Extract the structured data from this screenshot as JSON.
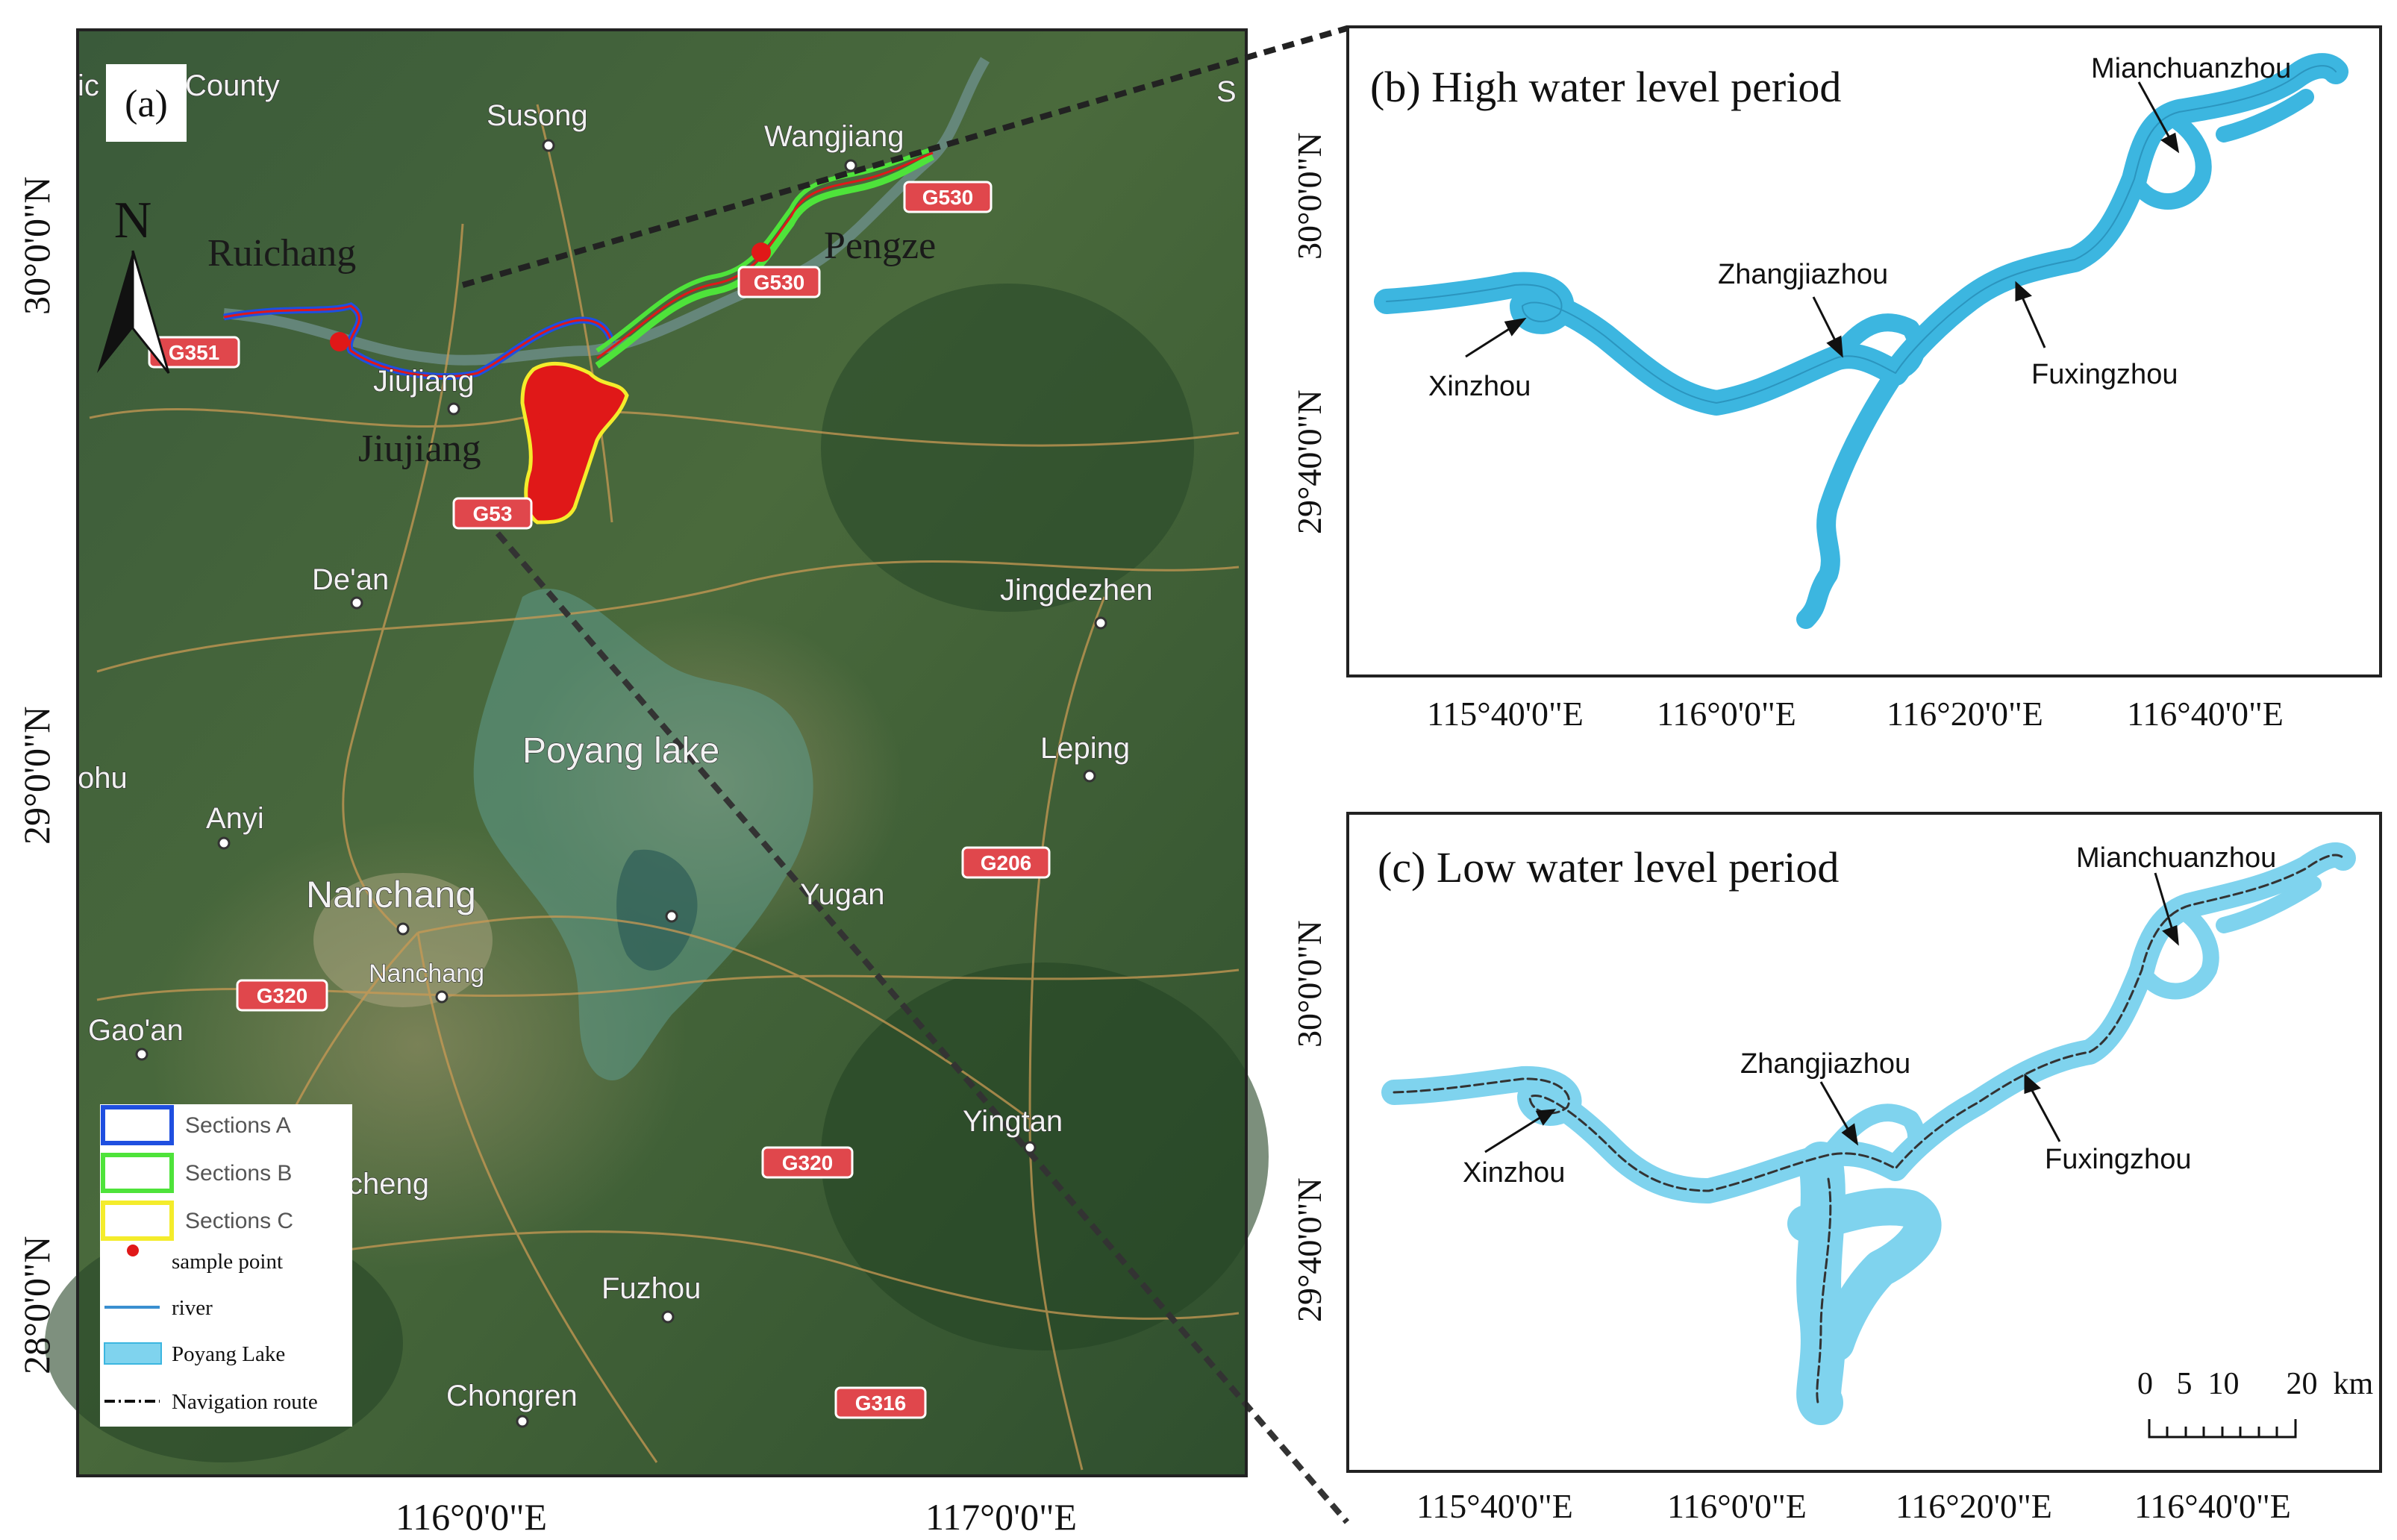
{
  "panel_a": {
    "label": "(a)",
    "north": "N",
    "lat_labels": [
      "30°0'0\"N",
      "29°0'0\"N",
      "28°0'0\"N"
    ],
    "lon_labels": [
      "116°0'0\"E",
      "117°0'0\"E"
    ],
    "places": {
      "county": "County",
      "susong": "Susong",
      "wangjiang": "Wangjiang",
      "ruichang": "Ruichang",
      "pengze": "Pengze",
      "jiujiang_map": "Jiujiang",
      "jiujiang": "Jiujiang",
      "dean": "De'an",
      "jingdezhen": "Jingdezhen",
      "poyang": "Poyang lake",
      "leping": "Leping",
      "anyi": "Anyi",
      "nanchang": "Nanchang",
      "nanchang_small": "Nanchang",
      "yugan": "Yugan",
      "gaoan": "Gao'an",
      "yingtan": "Yingtan",
      "cheng": "cheng",
      "fuzhou": "Fuzhou",
      "chongren": "Chongren",
      "ohu": "ohu",
      "s_edge": "S",
      "ic_edge": "ic"
    },
    "roads": {
      "g530a": "G530",
      "g530b": "G530",
      "g351": "G351",
      "g53": "G53",
      "g206": "G206",
      "g320a": "G320",
      "g320b": "G320",
      "g316": "G316"
    },
    "legend": {
      "sec_a": "Sections A",
      "sec_b": "Sections B",
      "sec_c": "Sections C",
      "sample": "sample point",
      "river": "river",
      "lake": "Poyang Lake",
      "nav": "Navigation route"
    }
  },
  "panel_b": {
    "title": "(b) High water level  period",
    "lat_labels": [
      "30°0'0\"N",
      "29°40'0\"N"
    ],
    "lon_labels": [
      "115°40'0\"E",
      "116°0'0\"E",
      "116°20'0\"E",
      "116°40'0\"E"
    ],
    "labels": {
      "mianchuanzhou": "Mianchuanzhou",
      "zhangjiazhou": "Zhangjiazhou",
      "xinzhou": "Xinzhou",
      "fuxingzhou": "Fuxingzhou"
    }
  },
  "panel_c": {
    "title": "(c) Low water level period",
    "lat_labels": [
      "30°0'0\"N",
      "29°40'0\"N"
    ],
    "lon_labels": [
      "115°40'0\"E",
      "116°0'0\"E",
      "116°20'0\"E",
      "116°40'0\"E"
    ],
    "labels": {
      "mianchuanzhou": "Mianchuanzhou",
      "zhangjiazhou": "Zhangjiazhou",
      "xinzhou": "Xinzhou",
      "fuxingzhou": "Fuxingzhou"
    },
    "scale": "0   5  10      20  km"
  },
  "colors": {
    "section_a": "#1f4fe0",
    "section_b": "#4ee33a",
    "section_c": "#f4ec2b",
    "sample": "#e01818",
    "river_fill": "#3cb6e0",
    "river_fill_low": "#7fd3ee",
    "road_badge": "#e0474c"
  }
}
